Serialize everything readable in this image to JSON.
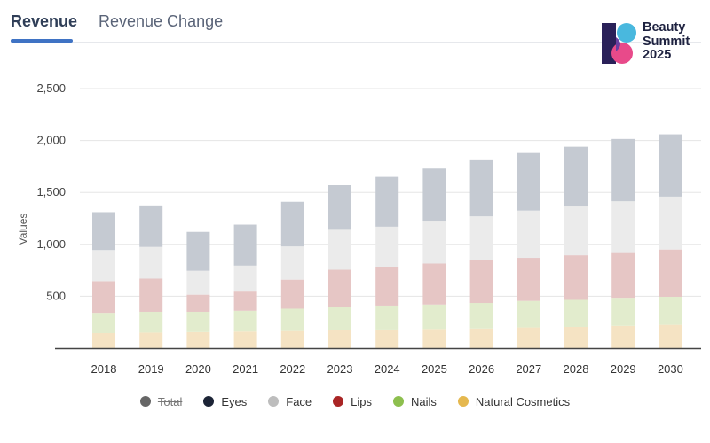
{
  "tabs": [
    {
      "label": "Revenue",
      "active": true
    },
    {
      "label": "Revenue Change",
      "active": false
    }
  ],
  "logo": {
    "line1": "Beauty",
    "line2": "Summit",
    "line3": "2025"
  },
  "chart_data": {
    "type": "bar",
    "stacked": true,
    "ylabel": "Values",
    "xlabel": "",
    "ylim": [
      0,
      2500
    ],
    "yticks": [
      500,
      1000,
      1500,
      2000,
      2500
    ],
    "grid": true,
    "categories": [
      "2018",
      "2019",
      "2020",
      "2021",
      "2022",
      "2023",
      "2024",
      "2025",
      "2026",
      "2027",
      "2028",
      "2029",
      "2030"
    ],
    "series": [
      {
        "name": "Natural Cosmetics",
        "color": "#f5e3c3",
        "values": [
          145,
          150,
          155,
          160,
          165,
          175,
          180,
          185,
          190,
          200,
          205,
          215,
          225
        ]
      },
      {
        "name": "Nails",
        "color": "#e2eccd",
        "values": [
          195,
          200,
          195,
          200,
          215,
          220,
          230,
          235,
          245,
          255,
          260,
          270,
          270
        ]
      },
      {
        "name": "Lips",
        "color": "#e6c6c5",
        "values": [
          305,
          320,
          165,
          185,
          280,
          360,
          375,
          395,
          410,
          415,
          430,
          440,
          455
        ]
      },
      {
        "name": "Face",
        "color": "#ebebeb",
        "values": [
          300,
          305,
          230,
          250,
          320,
          385,
          385,
          405,
          425,
          455,
          470,
          490,
          510
        ]
      },
      {
        "name": "Eyes",
        "color": "#c5cad2",
        "values": [
          365,
          400,
          375,
          395,
          430,
          430,
          480,
          510,
          540,
          555,
          575,
          600,
          600
        ]
      }
    ],
    "legend": {
      "position": "bottom",
      "items": [
        {
          "name": "Total",
          "color": "#666666",
          "hidden": true
        },
        {
          "name": "Eyes",
          "color": "#1c2436",
          "hidden": false
        },
        {
          "name": "Face",
          "color": "#bdbdbd",
          "hidden": false
        },
        {
          "name": "Lips",
          "color": "#a92525",
          "hidden": false
        },
        {
          "name": "Nails",
          "color": "#8dbf4e",
          "hidden": false
        },
        {
          "name": "Natural Cosmetics",
          "color": "#e5b84f",
          "hidden": false
        }
      ]
    }
  }
}
